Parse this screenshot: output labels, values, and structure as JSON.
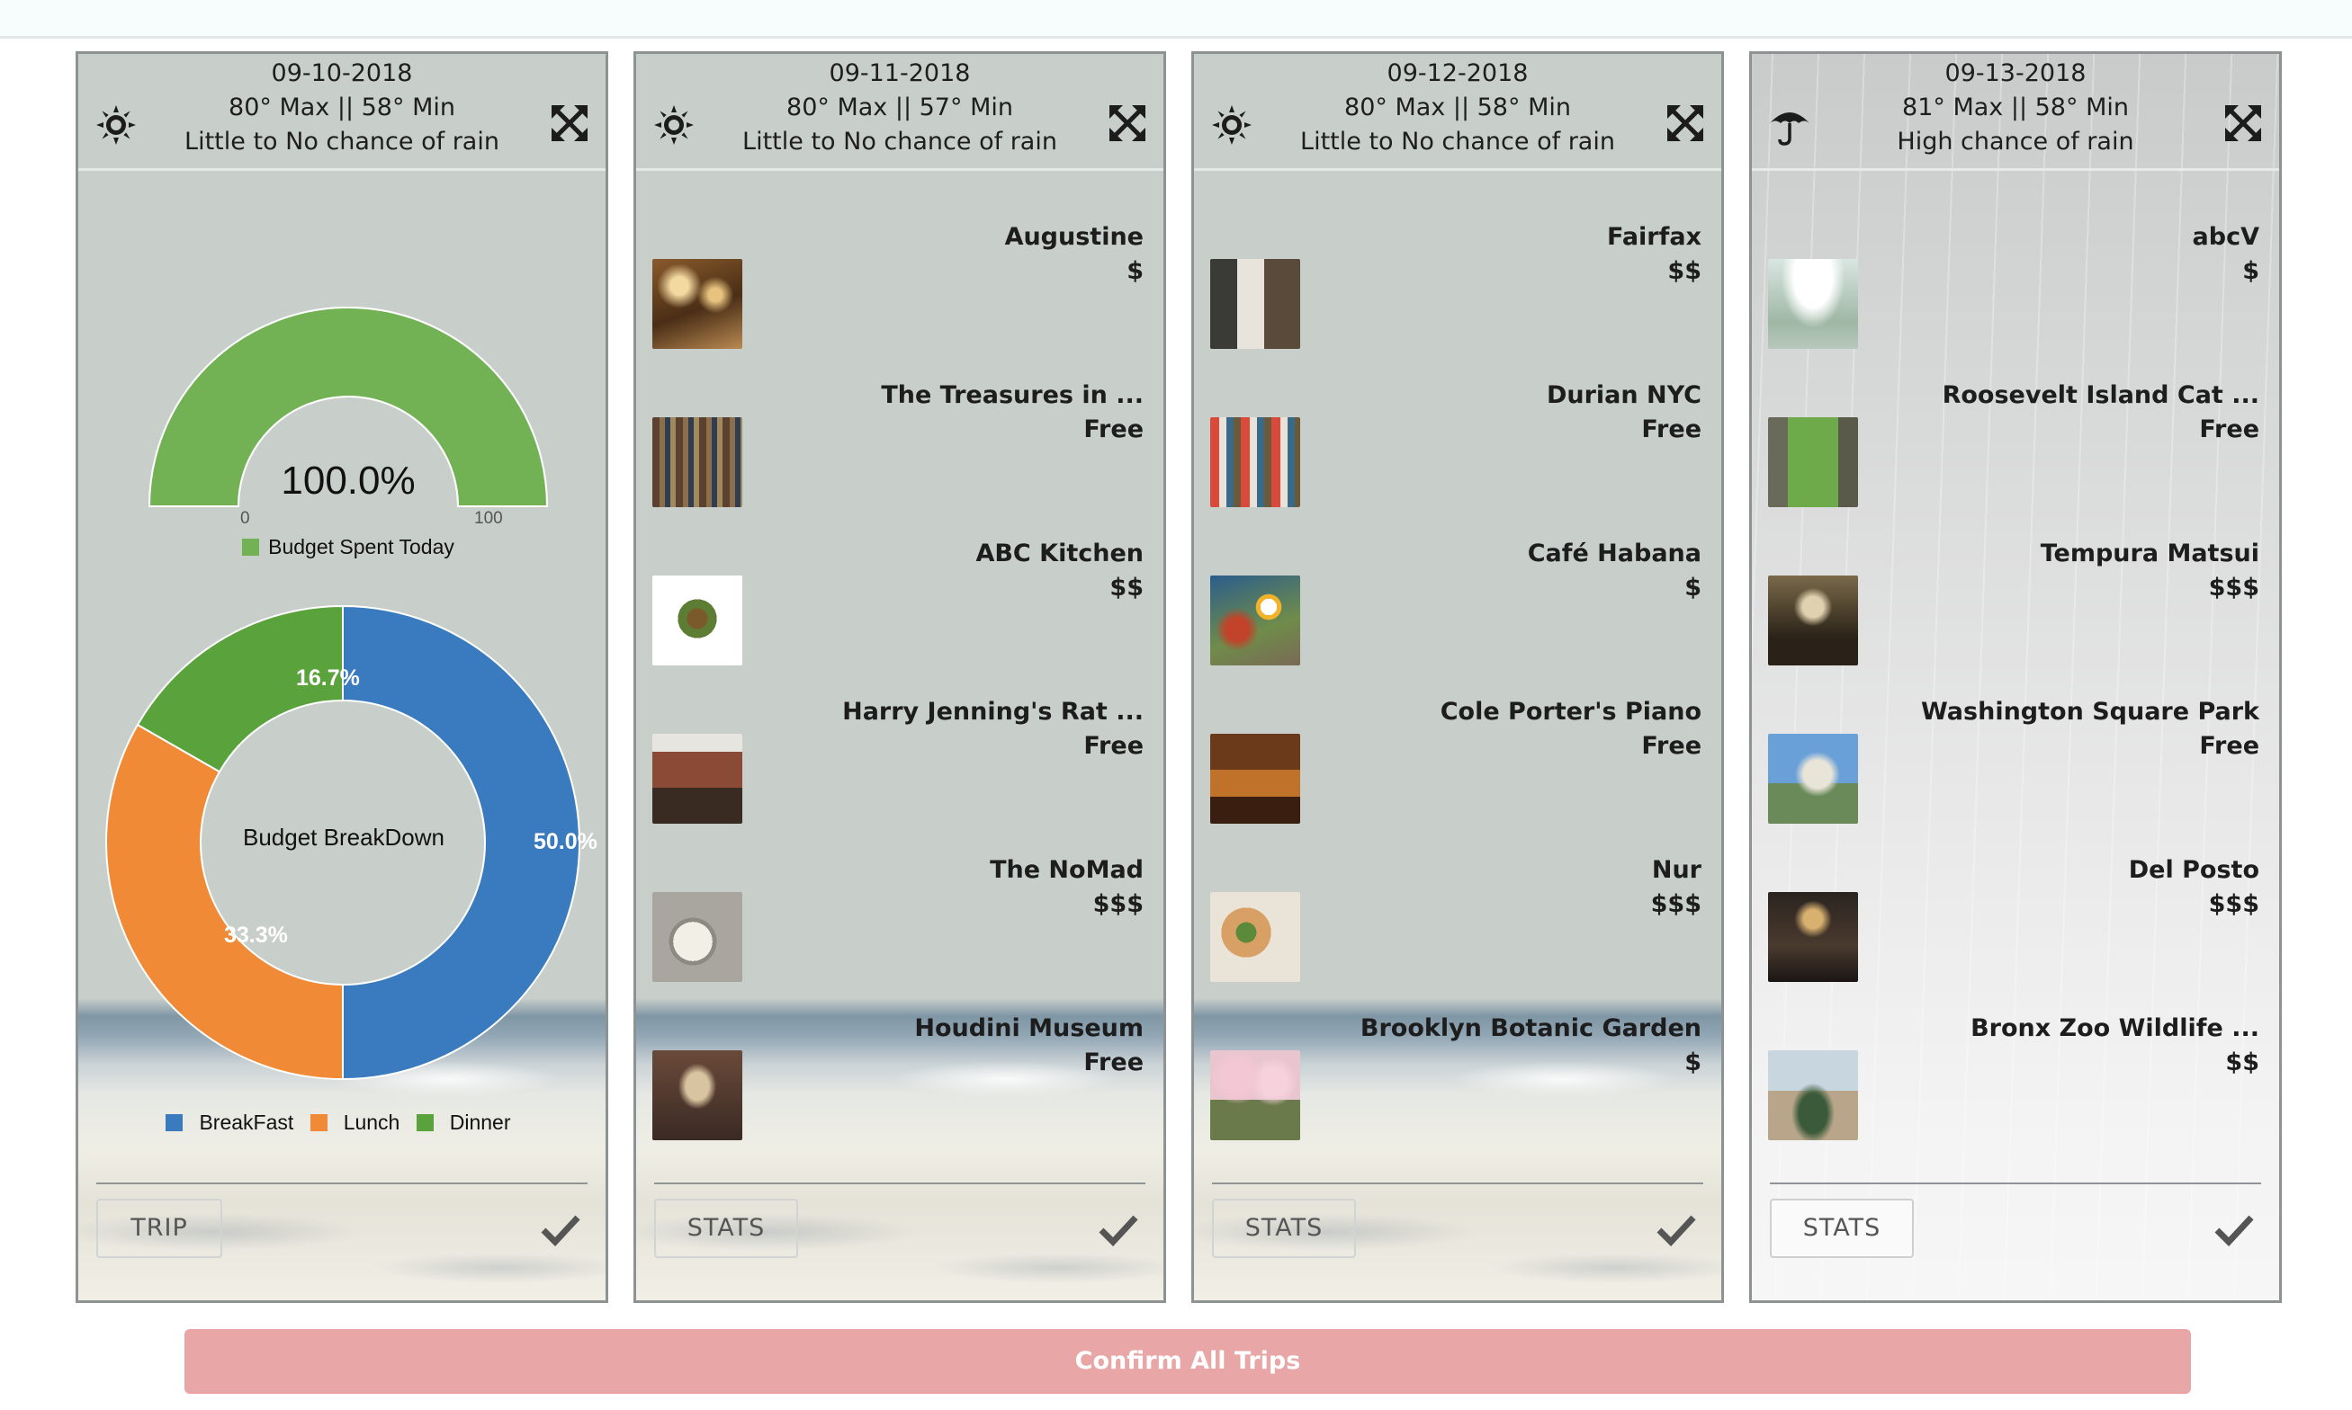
{
  "days": [
    {
      "date": "09-10-2018",
      "temps": "80° Max || 58° Min",
      "rain": "Little to No chance of rain",
      "weather_icon": "sun-icon",
      "footer_button": "TRIP"
    },
    {
      "date": "09-11-2018",
      "temps": "80° Max || 57° Min",
      "rain": "Little to No chance of rain",
      "weather_icon": "sun-icon",
      "footer_button": "STATS",
      "places": [
        {
          "name": "Augustine",
          "price": "$"
        },
        {
          "name": "The Treasures in ...",
          "price": "Free"
        },
        {
          "name": "ABC Kitchen",
          "price": "$$"
        },
        {
          "name": "Harry Jenning's Rat ...",
          "price": "Free"
        },
        {
          "name": "The NoMad",
          "price": "$$$"
        },
        {
          "name": "Houdini Museum",
          "price": "Free"
        }
      ]
    },
    {
      "date": "09-12-2018",
      "temps": "80° Max || 58° Min",
      "rain": "Little to No chance of rain",
      "weather_icon": "sun-icon",
      "footer_button": "STATS",
      "places": [
        {
          "name": "Fairfax",
          "price": "$$"
        },
        {
          "name": "Durian NYC",
          "price": "Free"
        },
        {
          "name": "Café Habana",
          "price": "$"
        },
        {
          "name": "Cole Porter's Piano",
          "price": "Free"
        },
        {
          "name": "Nur",
          "price": "$$$"
        },
        {
          "name": "Brooklyn Botanic Garden",
          "price": "$"
        }
      ]
    },
    {
      "date": "09-13-2018",
      "temps": "81° Max || 58° Min",
      "rain": "High chance of rain",
      "weather_icon": "umbrella-icon",
      "footer_button": "STATS",
      "places": [
        {
          "name": "abcV",
          "price": "$"
        },
        {
          "name": "Roosevelt Island Cat ...",
          "price": "Free"
        },
        {
          "name": "Tempura Matsui",
          "price": "$$$"
        },
        {
          "name": "Washington Square Park",
          "price": "Free"
        },
        {
          "name": "Del Posto",
          "price": "$$$"
        },
        {
          "name": "Bronx Zoo Wildlife ...",
          "price": "$$"
        }
      ]
    }
  ],
  "chart_data": [
    {
      "type": "gauge",
      "value": 100.0,
      "value_label": "100.0%",
      "min": 0,
      "max": 100,
      "min_label": "0",
      "max_label": "100",
      "legend": "Budget Spent Today",
      "color": "#72b255"
    },
    {
      "type": "pie",
      "center_label": "Budget BreakDown",
      "labels": [
        "BreakFast",
        "Lunch",
        "Dinner"
      ],
      "values": [
        50.0,
        33.3,
        16.7
      ],
      "value_labels": [
        "50.0%",
        "33.3%",
        "16.7%"
      ],
      "colors": [
        "#3a7bbf",
        "#f08a36",
        "#5aa23c"
      ],
      "legend_position": "bottom"
    }
  ],
  "confirm_button": "Confirm All Trips",
  "colors": {
    "card_border": "#8d9293",
    "confirm_button": "#e8a6a7"
  }
}
